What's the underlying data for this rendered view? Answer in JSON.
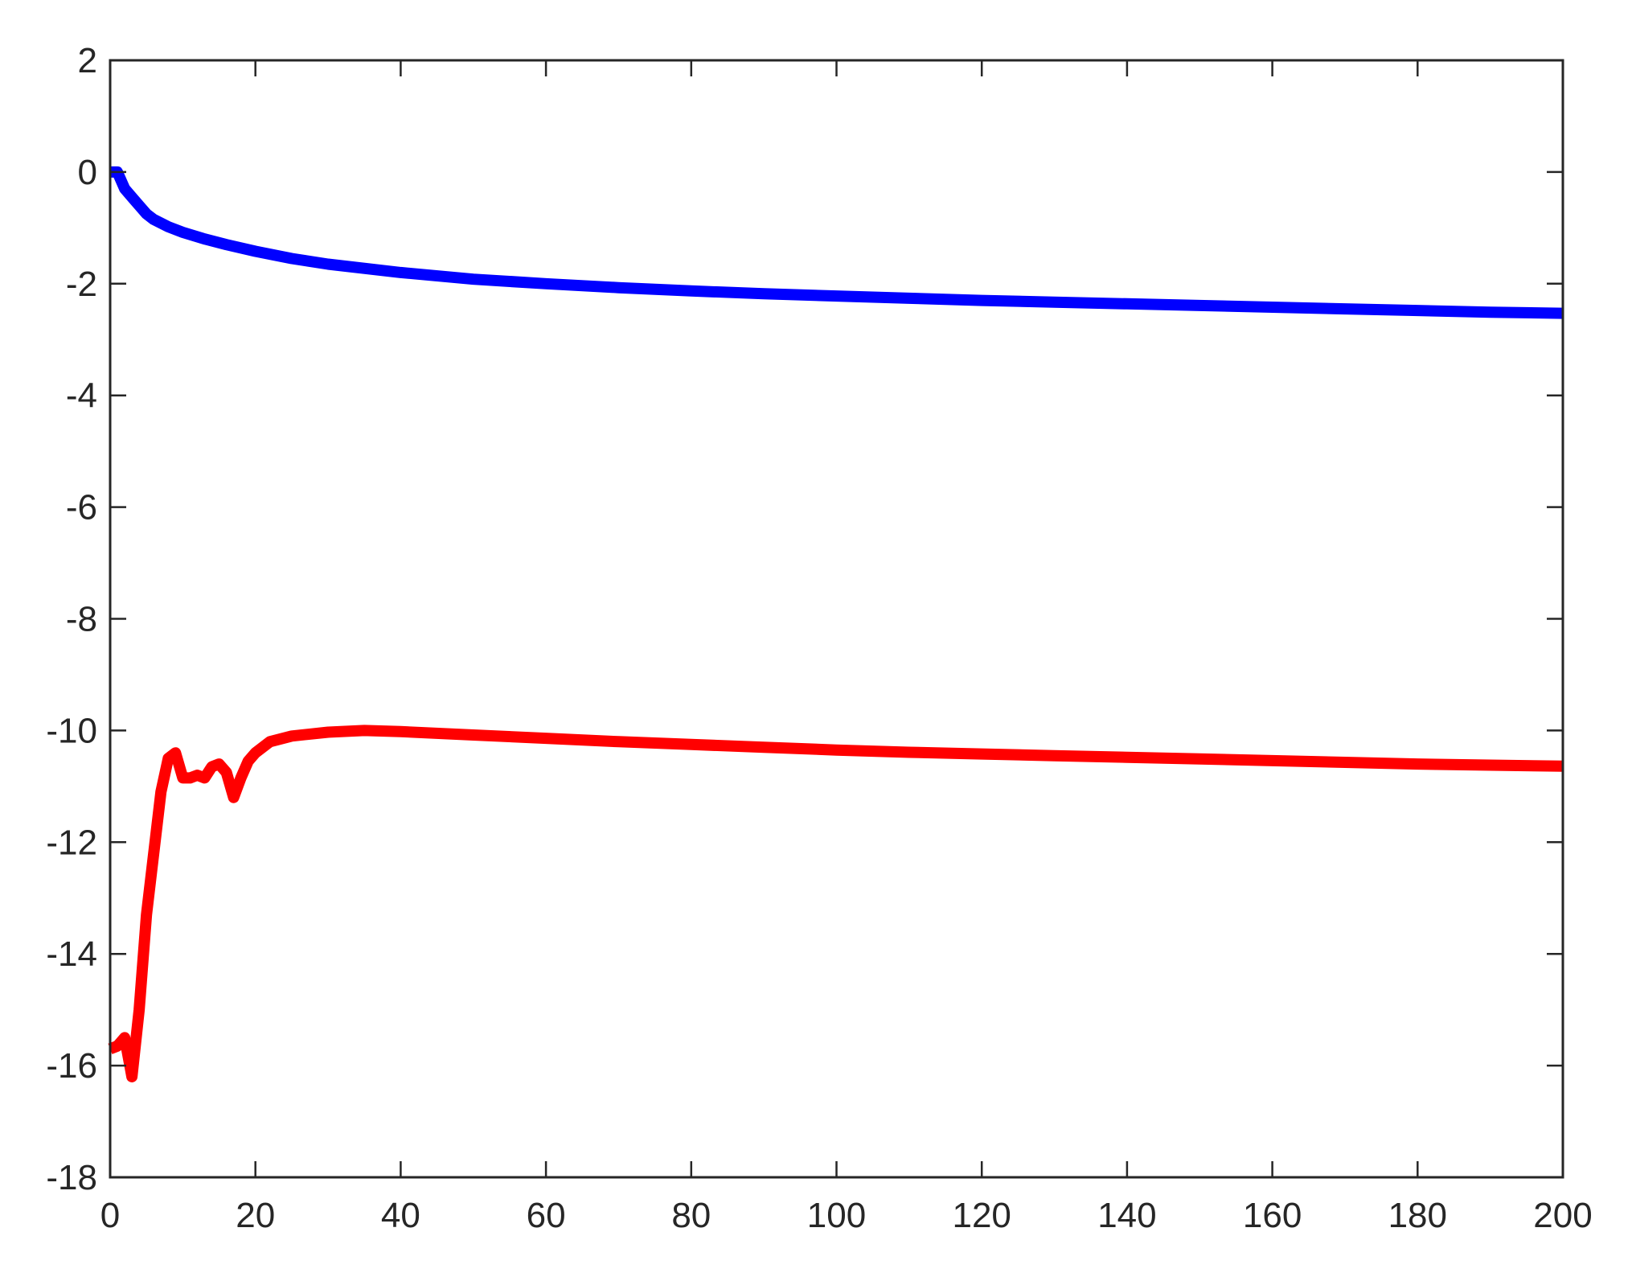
{
  "chart_data": {
    "type": "line",
    "title": "",
    "xlabel": "",
    "ylabel": "",
    "xlim": [
      0,
      200
    ],
    "ylim": [
      -18,
      2
    ],
    "x_ticks": [
      0,
      20,
      40,
      60,
      80,
      100,
      120,
      140,
      160,
      180,
      200
    ],
    "y_ticks": [
      2,
      0,
      -2,
      -4,
      -6,
      -8,
      -10,
      -12,
      -14,
      -16,
      -18
    ],
    "x_tick_labels": [
      "0",
      "20",
      "40",
      "60",
      "80",
      "100",
      "120",
      "140",
      "160",
      "180",
      "200"
    ],
    "y_tick_labels": [
      "2",
      "0",
      "-2",
      "-4",
      "-6",
      "-8",
      "-10",
      "-12",
      "-14",
      "-16",
      "-18"
    ],
    "grid": false,
    "legend": "none",
    "series": [
      {
        "color": "#0000ff",
        "points": [
          [
            0,
            0.0
          ],
          [
            1,
            0.0
          ],
          [
            2,
            -0.3
          ],
          [
            3,
            -0.45
          ],
          [
            4,
            -0.6
          ],
          [
            5,
            -0.75
          ],
          [
            6,
            -0.85
          ],
          [
            8,
            -0.98
          ],
          [
            10,
            -1.08
          ],
          [
            13,
            -1.2
          ],
          [
            16,
            -1.3
          ],
          [
            20,
            -1.42
          ],
          [
            25,
            -1.55
          ],
          [
            30,
            -1.65
          ],
          [
            40,
            -1.8
          ],
          [
            50,
            -1.92
          ],
          [
            60,
            -2.0
          ],
          [
            70,
            -2.07
          ],
          [
            80,
            -2.13
          ],
          [
            90,
            -2.18
          ],
          [
            100,
            -2.22
          ],
          [
            110,
            -2.26
          ],
          [
            120,
            -2.3
          ],
          [
            130,
            -2.33
          ],
          [
            140,
            -2.36
          ],
          [
            150,
            -2.39
          ],
          [
            160,
            -2.42
          ],
          [
            170,
            -2.45
          ],
          [
            180,
            -2.48
          ],
          [
            190,
            -2.51
          ],
          [
            200,
            -2.53
          ]
        ]
      },
      {
        "color": "#ff0000",
        "points": [
          [
            0,
            -15.7
          ],
          [
            1,
            -15.65
          ],
          [
            2,
            -15.5
          ],
          [
            3,
            -16.2
          ],
          [
            4,
            -15.0
          ],
          [
            5,
            -13.3
          ],
          [
            6,
            -12.2
          ],
          [
            7,
            -11.1
          ],
          [
            8,
            -10.5
          ],
          [
            9,
            -10.4
          ],
          [
            10,
            -10.85
          ],
          [
            11,
            -10.85
          ],
          [
            12,
            -10.8
          ],
          [
            13,
            -10.85
          ],
          [
            14,
            -10.65
          ],
          [
            15,
            -10.6
          ],
          [
            16,
            -10.75
          ],
          [
            17,
            -11.2
          ],
          [
            18,
            -10.85
          ],
          [
            19,
            -10.55
          ],
          [
            20,
            -10.4
          ],
          [
            22,
            -10.2
          ],
          [
            25,
            -10.1
          ],
          [
            30,
            -10.03
          ],
          [
            35,
            -10.0
          ],
          [
            40,
            -10.02
          ],
          [
            50,
            -10.08
          ],
          [
            60,
            -10.14
          ],
          [
            70,
            -10.2
          ],
          [
            80,
            -10.25
          ],
          [
            90,
            -10.3
          ],
          [
            100,
            -10.35
          ],
          [
            110,
            -10.39
          ],
          [
            120,
            -10.42
          ],
          [
            130,
            -10.45
          ],
          [
            140,
            -10.48
          ],
          [
            150,
            -10.51
          ],
          [
            160,
            -10.54
          ],
          [
            170,
            -10.57
          ],
          [
            180,
            -10.6
          ],
          [
            190,
            -10.62
          ],
          [
            200,
            -10.64
          ]
        ]
      }
    ]
  }
}
